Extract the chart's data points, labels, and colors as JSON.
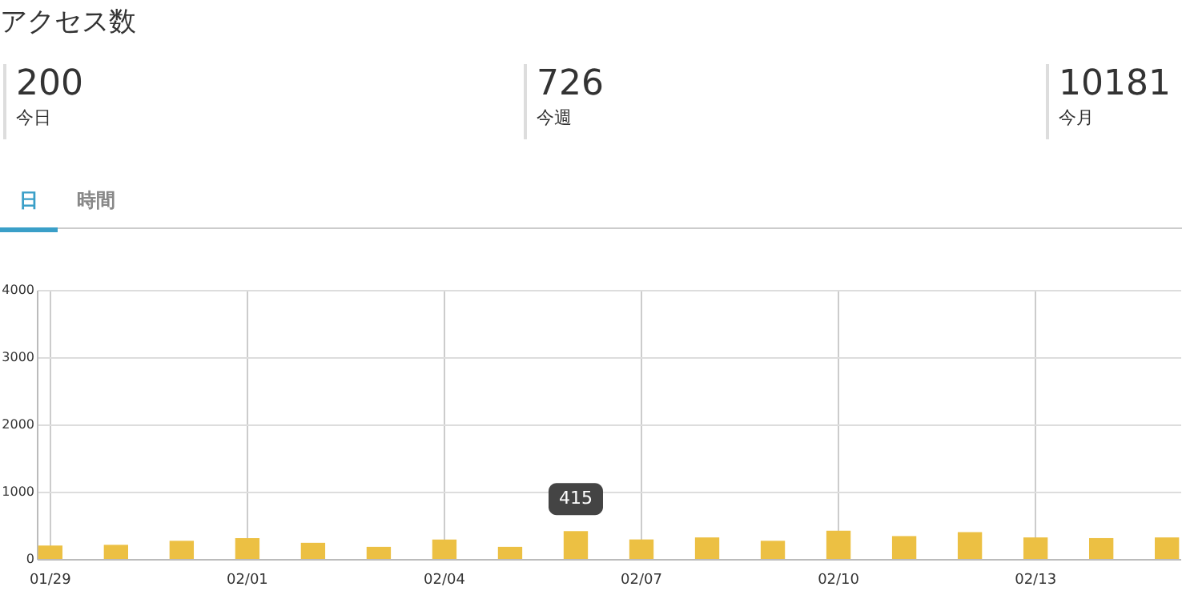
{
  "chart_data": [
    {
      "type": "other",
      "title": "アクセス数",
      "annotations": [
        "200",
        "今日",
        "726",
        "今週",
        "10181",
        "今月"
      ]
    },
    {
      "type": "bar",
      "annotations": [
        "日",
        "時間"
      ],
      "categories": [
        "01/29",
        null,
        null,
        "02/01",
        null,
        null,
        "02/04",
        null,
        null,
        "02/07",
        null,
        null,
        "02/10",
        null,
        null,
        "02/13",
        null,
        null
      ],
      "values": [
        200,
        210,
        270,
        310,
        240,
        180,
        290,
        180,
        415,
        290,
        320,
        270,
        420,
        340,
        400,
        320,
        310,
        320
      ],
      "value_labels": [
        null,
        null,
        null,
        null,
        null,
        null,
        null,
        null,
        "415",
        null,
        null,
        null,
        null,
        null,
        null,
        null,
        null,
        null
      ],
      "color": "#ecc043",
      "ylim": [
        0,
        4000
      ],
      "yticks": [
        0,
        1000,
        2000,
        3000,
        4000
      ],
      "grid": true
    }
  ]
}
